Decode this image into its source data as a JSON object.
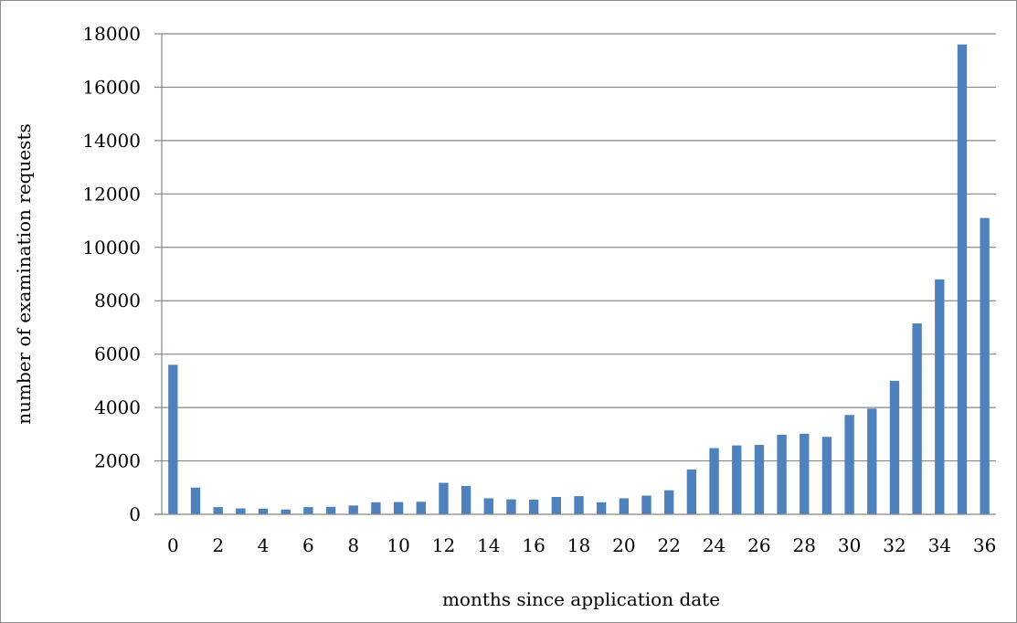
{
  "chart_data": {
    "type": "bar",
    "title": "",
    "xlabel": "months since application date",
    "ylabel": "number of examination requests",
    "categories": [
      "0",
      "1",
      "2",
      "3",
      "4",
      "5",
      "6",
      "7",
      "8",
      "9",
      "10",
      "11",
      "12",
      "13",
      "14",
      "15",
      "16",
      "17",
      "18",
      "19",
      "20",
      "21",
      "22",
      "23",
      "24",
      "25",
      "26",
      "27",
      "28",
      "29",
      "30",
      "31",
      "32",
      "33",
      "34",
      "35",
      "36"
    ],
    "values": [
      5600,
      1000,
      270,
      220,
      210,
      180,
      270,
      280,
      330,
      450,
      460,
      470,
      1180,
      1060,
      600,
      560,
      550,
      650,
      680,
      450,
      600,
      700,
      900,
      1680,
      2480,
      2580,
      2600,
      2980,
      3020,
      2900,
      3720,
      3960,
      5000,
      7150,
      8800,
      17600,
      11100
    ],
    "x_tick_labels": [
      "0",
      "2",
      "4",
      "6",
      "8",
      "10",
      "12",
      "14",
      "16",
      "18",
      "20",
      "22",
      "24",
      "26",
      "28",
      "30",
      "32",
      "34",
      "36"
    ],
    "y_tick_labels": [
      "0",
      "2000",
      "4000",
      "6000",
      "8000",
      "10000",
      "12000",
      "14000",
      "16000",
      "18000"
    ],
    "ylim": [
      0,
      18000
    ],
    "grid": true,
    "legend": "none",
    "colors": {
      "bar": "#4f81bd",
      "grid": "#868686",
      "axis": "#868686"
    }
  }
}
